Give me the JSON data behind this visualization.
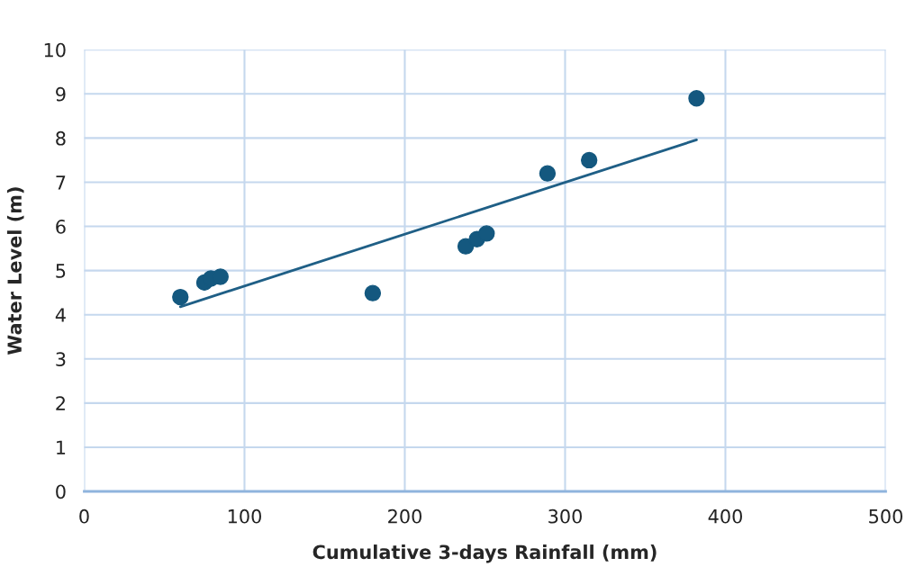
{
  "chart_data": {
    "type": "scatter",
    "xlabel": "Cumulative 3-days Rainfall (mm)",
    "ylabel": "Water Level (m)",
    "series": [
      {
        "marker": "circle",
        "color": "#14587f",
        "x": [
          60,
          75,
          79,
          85,
          180,
          238,
          245,
          251,
          289,
          315,
          382
        ],
        "values": [
          4.4,
          4.73,
          4.82,
          4.86,
          4.49,
          5.55,
          5.71,
          5.84,
          7.2,
          7.5,
          8.9
        ]
      },
      {
        "type": "line",
        "color": "#1f5f86",
        "x": [
          60,
          382
        ],
        "values": [
          4.18,
          7.96
        ]
      }
    ],
    "xlim": [
      0,
      500
    ],
    "xticks": [
      0,
      100,
      200,
      300,
      400,
      500
    ],
    "ylim": [
      0,
      10
    ],
    "yticks": [
      0,
      1,
      2,
      3,
      4,
      5,
      6,
      7,
      8,
      9,
      10
    ],
    "grid": true
  }
}
